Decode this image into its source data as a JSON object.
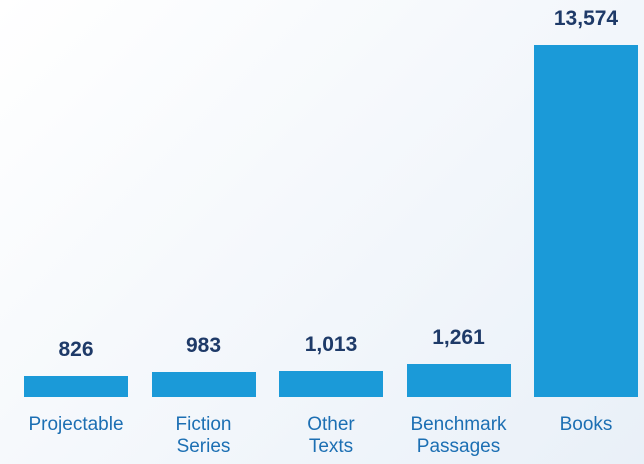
{
  "chart_data": {
    "type": "bar",
    "categories": [
      "Projectable",
      "Fiction Series",
      "Other Texts",
      "Benchmark Passages",
      "Books"
    ],
    "values": [
      826,
      983,
      1013,
      1261,
      13574
    ],
    "value_labels": [
      "826",
      "983",
      "1,013",
      "1,261",
      "13,574"
    ],
    "color": "#1b9ad8"
  }
}
